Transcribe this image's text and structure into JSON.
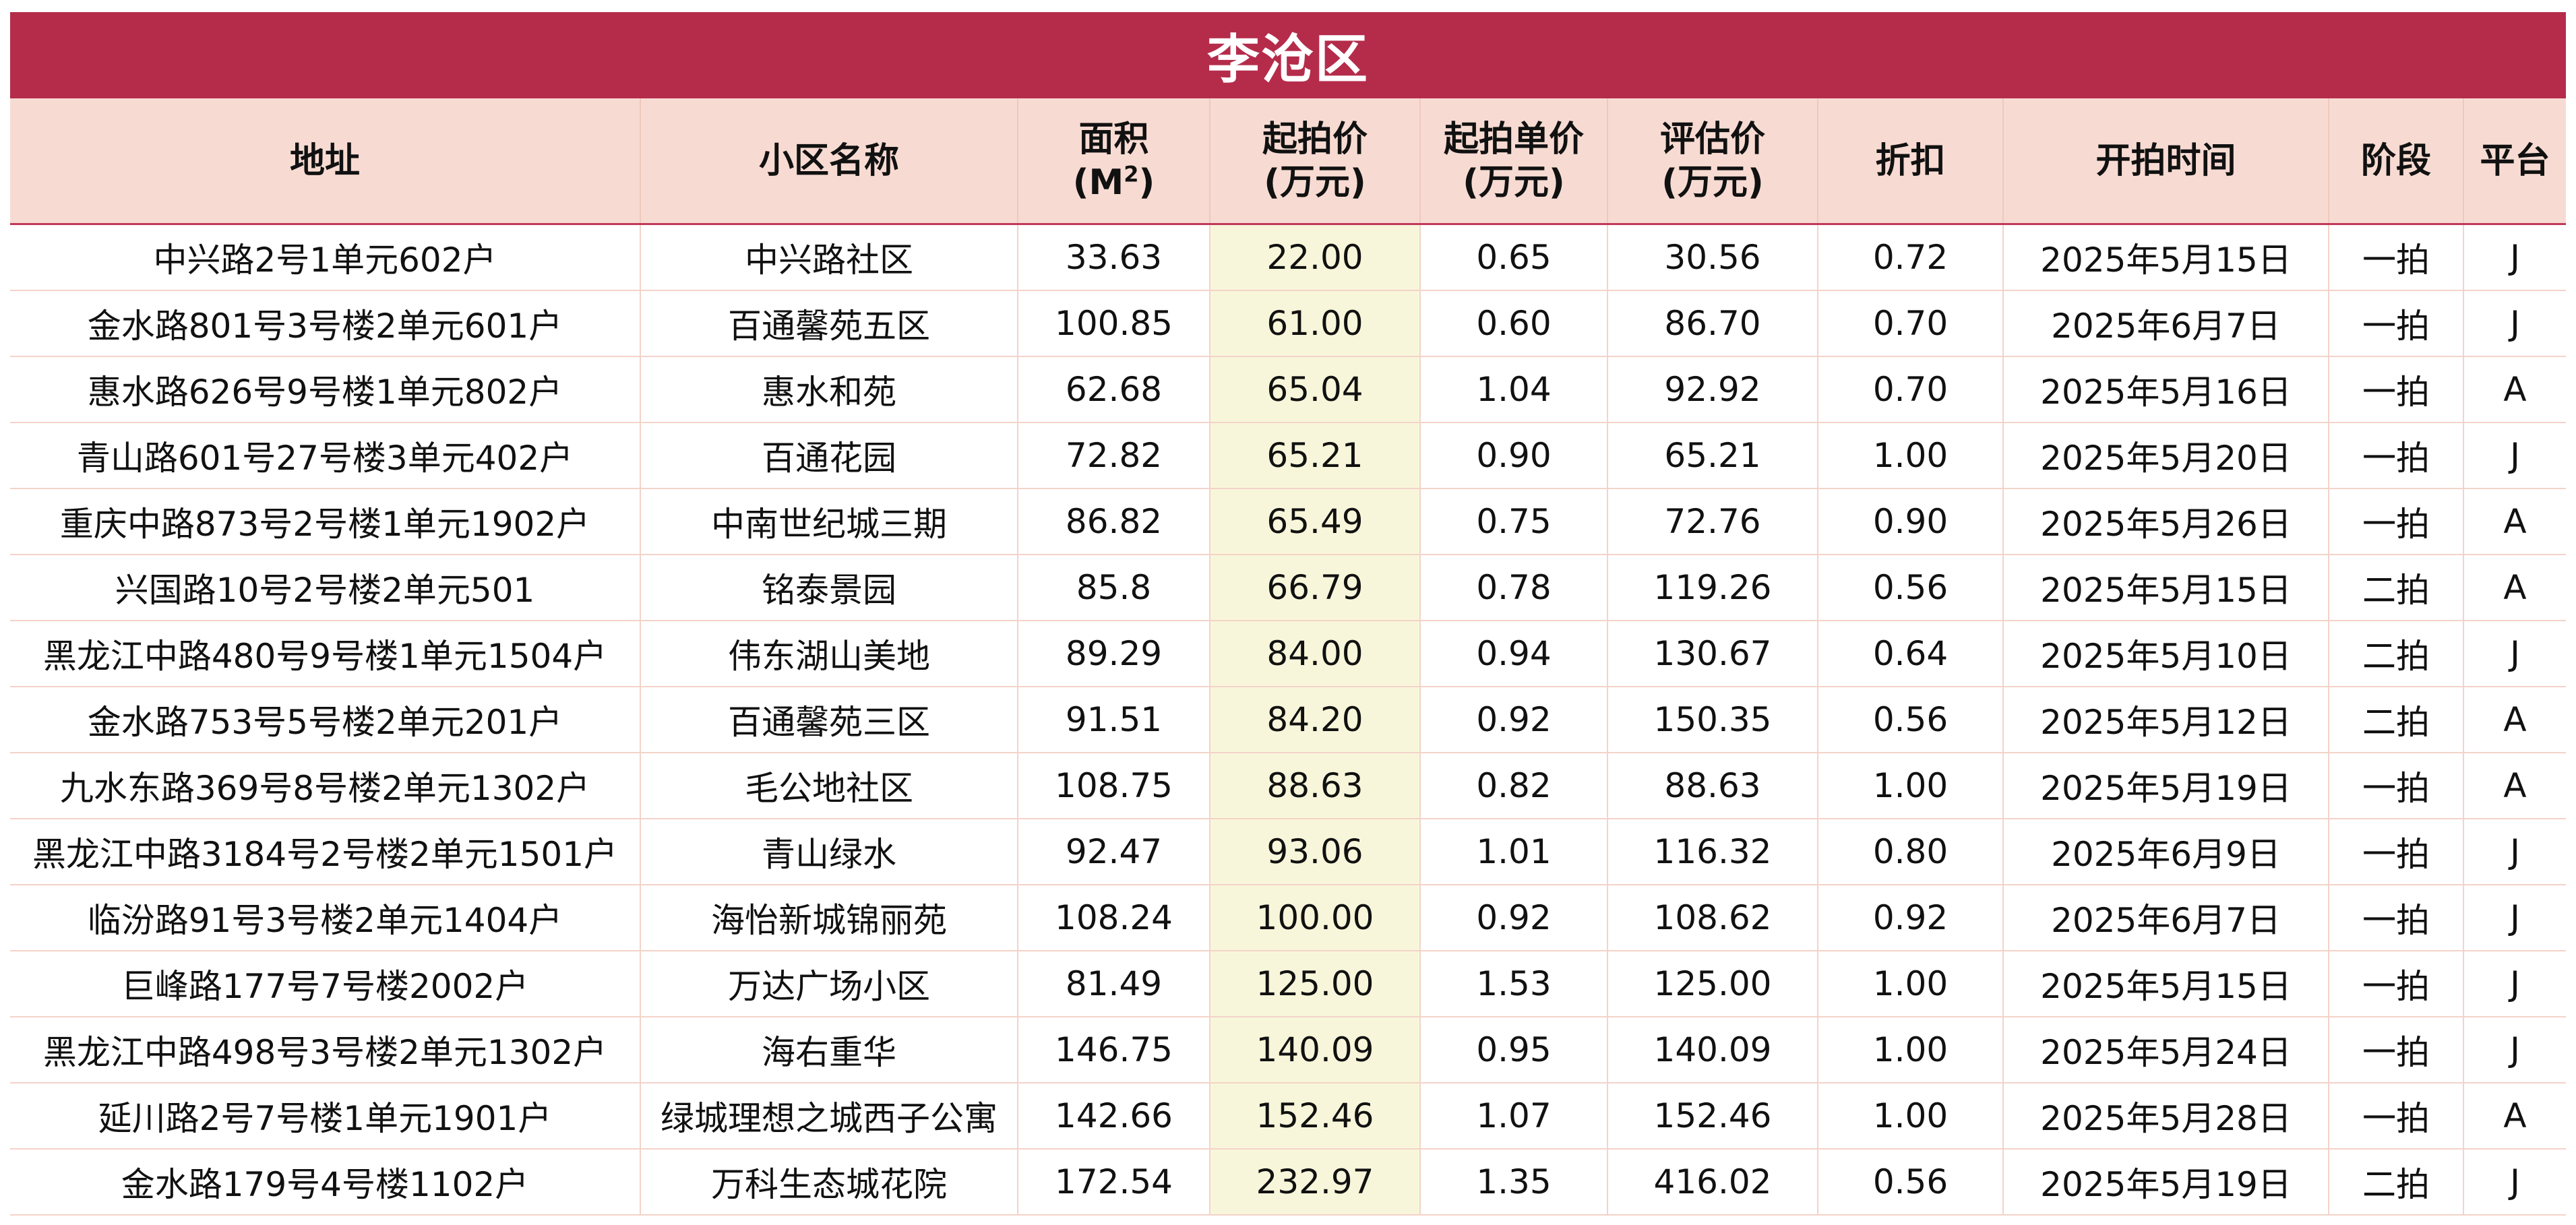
{
  "title": "李沧区",
  "headers": {
    "address": "地址",
    "community": "小区名称",
    "area_line1": "面积",
    "area_line2": "(M",
    "area_sup": "2",
    "area_close": ")",
    "start_price_line1": "起拍价",
    "start_price_line2": "(万元)",
    "unit_price_line1": "起拍单价",
    "unit_price_line2": "(万元)",
    "appraisal_line1": "评估价",
    "appraisal_line2": "(万元)",
    "discount": "折扣",
    "start_time": "开拍时间",
    "stage": "阶段",
    "platform": "平台"
  },
  "rows": [
    {
      "address": "中兴路2号1单元602户",
      "community": "中兴路社区",
      "area": "33.63",
      "start_price": "22.00",
      "unit_price": "0.65",
      "appraisal": "30.56",
      "discount": "0.72",
      "start_time": "2025年5月15日",
      "stage": "一拍",
      "platform": "J"
    },
    {
      "address": "金水路801号3号楼2单元601户",
      "community": "百通馨苑五区",
      "area": "100.85",
      "start_price": "61.00",
      "unit_price": "0.60",
      "appraisal": "86.70",
      "discount": "0.70",
      "start_time": "2025年6月7日",
      "stage": "一拍",
      "platform": "J"
    },
    {
      "address": "惠水路626号9号楼1单元802户",
      "community": "惠水和苑",
      "area": "62.68",
      "start_price": "65.04",
      "unit_price": "1.04",
      "appraisal": "92.92",
      "discount": "0.70",
      "start_time": "2025年5月16日",
      "stage": "一拍",
      "platform": "A"
    },
    {
      "address": "青山路601号27号楼3单元402户",
      "community": "百通花园",
      "area": "72.82",
      "start_price": "65.21",
      "unit_price": "0.90",
      "appraisal": "65.21",
      "discount": "1.00",
      "start_time": "2025年5月20日",
      "stage": "一拍",
      "platform": "J"
    },
    {
      "address": "重庆中路873号2号楼1单元1902户",
      "community": "中南世纪城三期",
      "area": "86.82",
      "start_price": "65.49",
      "unit_price": "0.75",
      "appraisal": "72.76",
      "discount": "0.90",
      "start_time": "2025年5月26日",
      "stage": "一拍",
      "platform": "A"
    },
    {
      "address": "兴国路10号2号楼2单元501",
      "community": "铭泰景园",
      "area": "85.8",
      "start_price": "66.79",
      "unit_price": "0.78",
      "appraisal": "119.26",
      "discount": "0.56",
      "start_time": "2025年5月15日",
      "stage": "二拍",
      "platform": "A"
    },
    {
      "address": "黑龙江中路480号9号楼1单元1504户",
      "community": "伟东湖山美地",
      "area": "89.29",
      "start_price": "84.00",
      "unit_price": "0.94",
      "appraisal": "130.67",
      "discount": "0.64",
      "start_time": "2025年5月10日",
      "stage": "二拍",
      "platform": "J"
    },
    {
      "address": "金水路753号5号楼2单元201户",
      "community": "百通馨苑三区",
      "area": "91.51",
      "start_price": "84.20",
      "unit_price": "0.92",
      "appraisal": "150.35",
      "discount": "0.56",
      "start_time": "2025年5月12日",
      "stage": "二拍",
      "platform": "A"
    },
    {
      "address": "九水东路369号8号楼2单元1302户",
      "community": "毛公地社区",
      "area": "108.75",
      "start_price": "88.63",
      "unit_price": "0.82",
      "appraisal": "88.63",
      "discount": "1.00",
      "start_time": "2025年5月19日",
      "stage": "一拍",
      "platform": "A"
    },
    {
      "address": "黑龙江中路3184号2号楼2单元1501户",
      "community": "青山绿水",
      "area": "92.47",
      "start_price": "93.06",
      "unit_price": "1.01",
      "appraisal": "116.32",
      "discount": "0.80",
      "start_time": "2025年6月9日",
      "stage": "一拍",
      "platform": "J"
    },
    {
      "address": "临汾路91号3号楼2单元1404户",
      "community": "海怡新城锦丽苑",
      "area": "108.24",
      "start_price": "100.00",
      "unit_price": "0.92",
      "appraisal": "108.62",
      "discount": "0.92",
      "start_time": "2025年6月7日",
      "stage": "一拍",
      "platform": "J"
    },
    {
      "address": "巨峰路177号7号楼2002户",
      "community": "万达广场小区",
      "area": "81.49",
      "start_price": "125.00",
      "unit_price": "1.53",
      "appraisal": "125.00",
      "discount": "1.00",
      "start_time": "2025年5月15日",
      "stage": "一拍",
      "platform": "J"
    },
    {
      "address": "黑龙江中路498号3号楼2单元1302户",
      "community": "海右重华",
      "area": "146.75",
      "start_price": "140.09",
      "unit_price": "0.95",
      "appraisal": "140.09",
      "discount": "1.00",
      "start_time": "2025年5月24日",
      "stage": "一拍",
      "platform": "J"
    },
    {
      "address": "延川路2号7号楼1单元1901户",
      "community": "绿城理想之城西子公寓",
      "area": "142.66",
      "start_price": "152.46",
      "unit_price": "1.07",
      "appraisal": "152.46",
      "discount": "1.00",
      "start_time": "2025年5月28日",
      "stage": "一拍",
      "platform": "A"
    },
    {
      "address": "金水路179号4号楼1102户",
      "community": "万科生态城花院",
      "area": "172.54",
      "start_price": "232.97",
      "unit_price": "1.35",
      "appraisal": "416.02",
      "discount": "0.56",
      "start_time": "2025年5月19日",
      "stage": "二拍",
      "platform": "J"
    }
  ]
}
